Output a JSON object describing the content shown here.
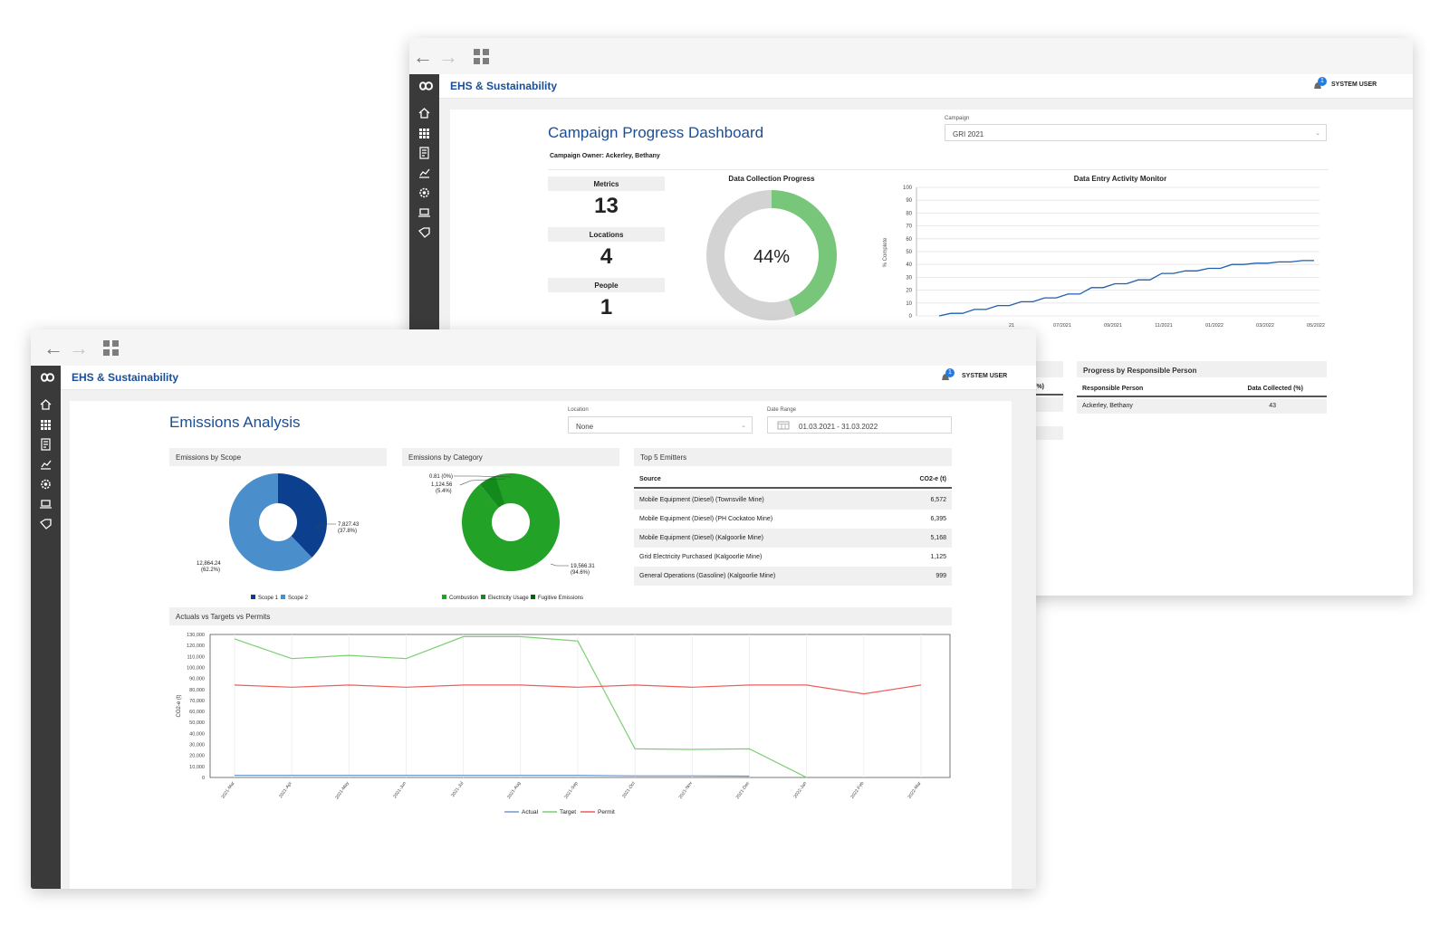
{
  "back_window": {
    "app_title": "EHS & Sustainability",
    "notification_count": "1",
    "user_label": "SYSTEM USER",
    "page_title": "Campaign Progress Dashboard",
    "campaign": {
      "label": "Campaign",
      "value": "GRI 2021"
    },
    "campaign_owner": "Campaign Owner: Ackerley, Bethany",
    "metrics": [
      {
        "label": "Metrics",
        "value": "13"
      },
      {
        "label": "Locations",
        "value": "4"
      },
      {
        "label": "People",
        "value": "1"
      }
    ],
    "collection_progress": {
      "title": "Data Collection Progress",
      "label": "44%",
      "fraction": 0.44,
      "fill_color": "#78c67a",
      "rest_color": "#d3d3d3"
    },
    "activity_monitor": {
      "title": "Data Entry Activity Monitor",
      "ylabel": "% Complete",
      "y_ticks": [
        "100",
        "90",
        "80",
        "70",
        "60",
        "50",
        "40",
        "30",
        "20",
        "10",
        "0"
      ],
      "x_ticks": [
        "21",
        "07/2021",
        "09/2021",
        "11/2021",
        "01/2022",
        "03/2022",
        "05/2022"
      ]
    },
    "hidden_table_header": "ed (%)",
    "responsible_person": {
      "title": "Progress by Responsible Person",
      "columns": [
        "Responsible Person",
        "Data Collected (%)"
      ],
      "rows": [
        {
          "person": "Ackerley, Bethany",
          "value": "43"
        }
      ]
    }
  },
  "front_window": {
    "app_title": "EHS & Sustainability",
    "notification_count": "1",
    "user_label": "SYSTEM USER",
    "page_title": "Emissions Analysis",
    "location": {
      "label": "Location",
      "value": "None"
    },
    "date_range": {
      "label": "Date Range",
      "value": "01.03.2021 - 31.03.2022"
    },
    "scope_panel": {
      "title": "Emissions by Scope",
      "label_scope1": "7,827.43",
      "pct_scope1": "(37.8%)",
      "label_scope2": "12,864.24",
      "pct_scope2": "(62.2%)",
      "legend": [
        "Scope 1",
        "Scope 2"
      ]
    },
    "category_panel": {
      "title": "Emissions by Category",
      "label_a": "0.81 (0%)",
      "label_b": "1,124.56",
      "label_b_pct": "(5.4%)",
      "label_c": "19,566.31",
      "label_c_pct": "(94.6%)",
      "legend": [
        "Combustion",
        "Electricity Usage",
        "Fugitive Emissions"
      ]
    },
    "top_emitters": {
      "title": "Top 5 Emitters",
      "columns": [
        "Source",
        "CO2-e (t)"
      ],
      "rows": [
        {
          "source": "Mobile Equipment (Diesel) (Townsville Mine)",
          "value": "6,572"
        },
        {
          "source": "Mobile Equipment (Diesel) (PH Cockatoo Mine)",
          "value": "6,395"
        },
        {
          "source": "Mobile Equipment (Diesel) (Kalgoorlie Mine)",
          "value": "5,168"
        },
        {
          "source": "Grid Electricity Purchased (Kalgoorlie Mine)",
          "value": "1,125"
        },
        {
          "source": "General Operations (Gasoline) (Kalgoorlie Mine)",
          "value": "999"
        }
      ]
    },
    "actuals_panel": {
      "title": "Actuals vs Targets vs Permits"
    }
  },
  "chart_data": [
    {
      "type": "pie",
      "title": "Emissions by Scope",
      "categories": [
        "Scope 1",
        "Scope 2"
      ],
      "values": [
        7827.43,
        12864.24
      ],
      "colors": [
        "#0d3f8f",
        "#4a8ecb"
      ],
      "donut": true
    },
    {
      "type": "pie",
      "title": "Emissions by Category",
      "categories": [
        "Combustion",
        "Electricity Usage",
        "Fugitive Emissions"
      ],
      "values": [
        19566.31,
        1124.56,
        0.81
      ],
      "colors": [
        "#22a227",
        "#138a1c",
        "#0b5e12"
      ],
      "donut": true
    },
    {
      "type": "line",
      "title": "Data Entry Activity Monitor",
      "ylabel": "% Complete",
      "ylim": [
        0,
        100
      ],
      "series": [
        {
          "values": [
            0,
            2,
            2,
            5,
            5,
            8,
            8,
            11,
            11,
            14,
            14,
            17,
            17,
            22,
            22,
            25,
            25,
            28,
            28,
            33,
            33,
            35,
            35,
            37,
            37,
            40,
            40,
            41,
            41,
            42,
            42,
            43,
            43
          ]
        }
      ],
      "color": "#1f5fae"
    },
    {
      "type": "line",
      "title": "Actuals vs Targets vs Permits",
      "ylabel": "CO2-e (t)",
      "ylim": [
        0,
        130000
      ],
      "y_ticks": [
        "130,000",
        "120,000",
        "110,000",
        "100,000",
        "90,000",
        "80,000",
        "70,000",
        "60,000",
        "50,000",
        "40,000",
        "30,000",
        "20,000",
        "10,000",
        "0"
      ],
      "categories": [
        "2021-Mar",
        "2021-Apr",
        "2021-May",
        "2021-Jun",
        "2021-Jul",
        "2021-Aug",
        "2021-Sep",
        "2021-Oct",
        "2021-Nov",
        "2021-Dec",
        "2022-Jan",
        "2022-Feb",
        "2022-Mar"
      ],
      "series": [
        {
          "name": "Actual",
          "color": "#6e9bd1",
          "values": [
            2000,
            2000,
            2000,
            2000,
            2000,
            2000,
            2000,
            1500,
            1500,
            1200,
            null,
            null,
            null
          ]
        },
        {
          "name": "Target",
          "color": "#7bcf73",
          "values": [
            126000,
            108000,
            111000,
            108000,
            128000,
            128000,
            124000,
            26000,
            25500,
            26000,
            0,
            null,
            null
          ]
        },
        {
          "name": "Permit",
          "color": "#ef5b5b",
          "values": [
            84000,
            82000,
            84000,
            82000,
            84000,
            84000,
            82000,
            84000,
            82000,
            84000,
            84000,
            76000,
            84000
          ]
        }
      ],
      "legend": [
        "Actual",
        "Target",
        "Permit"
      ],
      "legend_position": "bottom"
    }
  ]
}
